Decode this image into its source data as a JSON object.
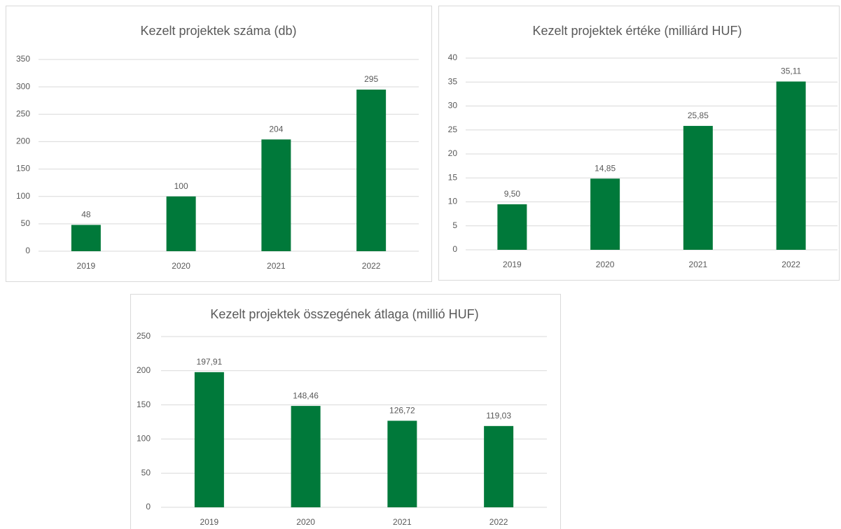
{
  "chart_data": [
    {
      "type": "bar",
      "title": "Kezelt projektek száma (db)",
      "categories": [
        "2019",
        "2020",
        "2021",
        "2022"
      ],
      "values": [
        48,
        100,
        204,
        295
      ],
      "color": "#00793a",
      "ylim": [
        0,
        350
      ],
      "yticks": [
        0,
        50,
        100,
        150,
        200,
        250,
        300,
        350
      ],
      "grid": true
    },
    {
      "type": "bar",
      "title": "Kezelt projektek értéke (milliárd HUF)",
      "categories": [
        "2019",
        "2020",
        "2021",
        "2022"
      ],
      "values": [
        9.5,
        14.85,
        25.85,
        35.11
      ],
      "value_labels": [
        "9,50",
        "14,85",
        "25,85",
        "35,11"
      ],
      "color": "#00793a",
      "ylim": [
        0,
        40
      ],
      "yticks": [
        0,
        5,
        10,
        15,
        20,
        25,
        30,
        35,
        40
      ],
      "grid": true
    },
    {
      "type": "bar",
      "title": "Kezelt projektek összegének átlaga (millió HUF)",
      "categories": [
        "2019",
        "2020",
        "2021",
        "2022"
      ],
      "values": [
        197.91,
        148.46,
        126.72,
        119.03
      ],
      "value_labels": [
        "197,91",
        "148,46",
        "126,72",
        "119,03"
      ],
      "color": "#00793a",
      "ylim": [
        0,
        250
      ],
      "yticks": [
        0,
        50,
        100,
        150,
        200,
        250
      ],
      "grid": true
    }
  ]
}
